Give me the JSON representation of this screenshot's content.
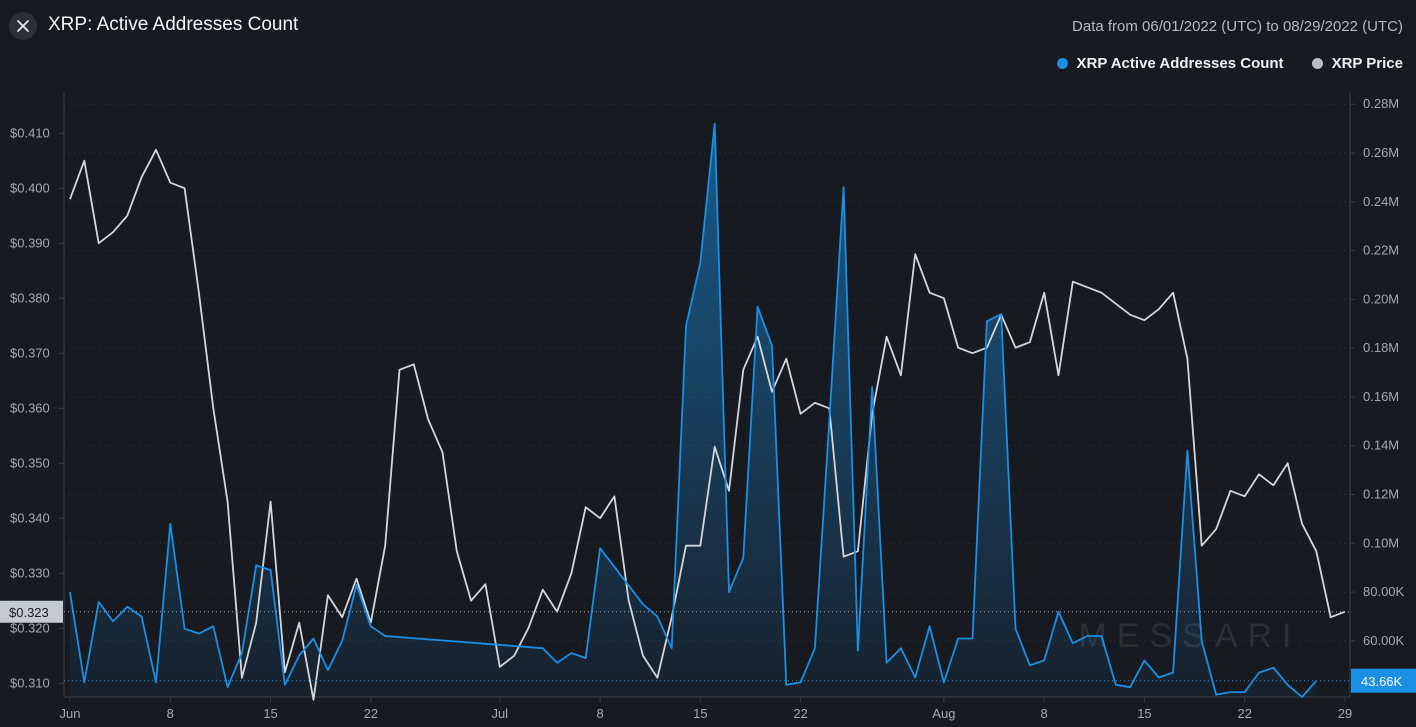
{
  "header": {
    "title": "XRP: Active Addresses Count",
    "date_range": "Data from 06/01/2022 (UTC) to 08/29/2022 (UTC)"
  },
  "legend": {
    "items": [
      {
        "label": "XRP Active Addresses Count",
        "color": "#1a8fe3"
      },
      {
        "label": "XRP Price",
        "color": "#b9bdc6"
      }
    ]
  },
  "watermark": "MESSARI",
  "colors": {
    "background": "#171a21",
    "active_addresses": "#1a8fe3",
    "price": "#d3d6dc",
    "grid": "#2a2e37"
  },
  "chart_data": {
    "type": "line",
    "x_start": "2022-06-01",
    "x_end": "2022-08-29",
    "x_tick_labels": [
      "Jun",
      "8",
      "15",
      "22",
      "Jul",
      "8",
      "15",
      "22",
      "Aug",
      "8",
      "15",
      "22",
      "29"
    ],
    "left_axis": {
      "ticks": [
        "$0.310",
        "$0.320",
        "$0.330",
        "$0.340",
        "$0.350",
        "$0.360",
        "$0.370",
        "$0.380",
        "$0.390",
        "$0.400",
        "$0.410"
      ],
      "range": [
        0.3075,
        0.4175
      ],
      "current_label": "$0.323",
      "current_value": 0.323
    },
    "right_axis": {
      "ticks": [
        "60.00K",
        "80.00K",
        "0.10M",
        "0.12M",
        "0.14M",
        "0.16M",
        "0.18M",
        "0.20M",
        "0.22M",
        "0.24M",
        "0.26M",
        "0.28M"
      ],
      "range": [
        37000,
        285000
      ],
      "current_label": "43.66K",
      "current_value": 43660
    },
    "series": [
      {
        "name": "XRP Active Addresses Count",
        "axis": "right",
        "style": "area",
        "color": "#1a8fe3",
        "points": [
          [
            "2022-06-01",
            80000
          ],
          [
            "2022-06-02",
            43000
          ],
          [
            "2022-06-03",
            76000
          ],
          [
            "2022-06-04",
            68000
          ],
          [
            "2022-06-05",
            74000
          ],
          [
            "2022-06-06",
            70000
          ],
          [
            "2022-06-07",
            43000
          ],
          [
            "2022-06-08",
            108000
          ],
          [
            "2022-06-09",
            65000
          ],
          [
            "2022-06-10",
            63000
          ],
          [
            "2022-06-11",
            66000
          ],
          [
            "2022-06-12",
            41000
          ],
          [
            "2022-06-13",
            55000
          ],
          [
            "2022-06-14",
            91000
          ],
          [
            "2022-06-15",
            89000
          ],
          [
            "2022-06-16",
            42000
          ],
          [
            "2022-06-17",
            54000
          ],
          [
            "2022-06-18",
            61000
          ],
          [
            "2022-06-19",
            48000
          ],
          [
            "2022-06-20",
            60000
          ],
          [
            "2022-06-21",
            83000
          ],
          [
            "2022-06-22",
            66000
          ],
          [
            "2022-06-23",
            62000
          ],
          [
            "2022-07-04",
            57000
          ],
          [
            "2022-07-05",
            51000
          ],
          [
            "2022-07-06",
            55000
          ],
          [
            "2022-07-07",
            53000
          ],
          [
            "2022-07-08",
            98000
          ],
          [
            "2022-07-11",
            75000
          ],
          [
            "2022-07-12",
            70000
          ],
          [
            "2022-07-13",
            57000
          ],
          [
            "2022-07-14",
            189000
          ],
          [
            "2022-07-15",
            215000
          ],
          [
            "2022-07-16",
            272000
          ],
          [
            "2022-07-17",
            80000
          ],
          [
            "2022-07-18",
            94000
          ],
          [
            "2022-07-19",
            197000
          ],
          [
            "2022-07-20",
            181000
          ],
          [
            "2022-07-21",
            42000
          ],
          [
            "2022-07-22",
            43000
          ],
          [
            "2022-07-23",
            57000
          ],
          [
            "2022-07-24",
            150000
          ],
          [
            "2022-07-25",
            246000
          ],
          [
            "2022-07-26",
            56000
          ],
          [
            "2022-07-27",
            164000
          ],
          [
            "2022-07-28",
            51000
          ],
          [
            "2022-07-29",
            57000
          ],
          [
            "2022-07-30",
            45000
          ],
          [
            "2022-07-31",
            66000
          ],
          [
            "2022-08-01",
            43000
          ],
          [
            "2022-08-02",
            61000
          ],
          [
            "2022-08-03",
            61000
          ],
          [
            "2022-08-04",
            191000
          ],
          [
            "2022-08-05",
            194000
          ],
          [
            "2022-08-06",
            65000
          ],
          [
            "2022-08-07",
            50000
          ],
          [
            "2022-08-08",
            52000
          ],
          [
            "2022-08-09",
            72000
          ],
          [
            "2022-08-10",
            59000
          ],
          [
            "2022-08-11",
            62000
          ],
          [
            "2022-08-12",
            62000
          ],
          [
            "2022-08-13",
            42000
          ],
          [
            "2022-08-14",
            41000
          ],
          [
            "2022-08-15",
            52000
          ],
          [
            "2022-08-16",
            45000
          ],
          [
            "2022-08-17",
            47000
          ],
          [
            "2022-08-18",
            138000
          ],
          [
            "2022-08-19",
            60000
          ],
          [
            "2022-08-20",
            38000
          ],
          [
            "2022-08-21",
            39000
          ],
          [
            "2022-08-22",
            39000
          ],
          [
            "2022-08-23",
            47000
          ],
          [
            "2022-08-24",
            49000
          ],
          [
            "2022-08-25",
            42000
          ],
          [
            "2022-08-26",
            37000
          ],
          [
            "2022-08-27",
            43660
          ]
        ]
      },
      {
        "name": "XRP Price",
        "axis": "left",
        "style": "line",
        "color": "#d3d6dc",
        "points": [
          [
            "2022-06-01",
            0.398
          ],
          [
            "2022-06-02",
            0.405
          ],
          [
            "2022-06-03",
            0.39
          ],
          [
            "2022-06-04",
            0.392
          ],
          [
            "2022-06-05",
            0.395
          ],
          [
            "2022-06-06",
            0.402
          ],
          [
            "2022-06-07",
            0.407
          ],
          [
            "2022-06-08",
            0.401
          ],
          [
            "2022-06-09",
            0.4
          ],
          [
            "2022-06-10",
            0.381
          ],
          [
            "2022-06-11",
            0.36
          ],
          [
            "2022-06-12",
            0.343
          ],
          [
            "2022-06-13",
            0.311
          ],
          [
            "2022-06-14",
            0.321
          ],
          [
            "2022-06-15",
            0.343
          ],
          [
            "2022-06-16",
            0.312
          ],
          [
            "2022-06-17",
            0.321
          ],
          [
            "2022-06-18",
            0.307
          ],
          [
            "2022-06-19",
            0.326
          ],
          [
            "2022-06-20",
            0.322
          ],
          [
            "2022-06-21",
            0.329
          ],
          [
            "2022-06-22",
            0.321
          ],
          [
            "2022-06-23",
            0.335
          ],
          [
            "2022-06-24",
            0.367
          ],
          [
            "2022-06-25",
            0.368
          ],
          [
            "2022-06-26",
            0.358
          ],
          [
            "2022-06-27",
            0.352
          ],
          [
            "2022-06-28",
            0.334
          ],
          [
            "2022-06-29",
            0.325
          ],
          [
            "2022-06-30",
            0.328
          ],
          [
            "2022-07-01",
            0.313
          ],
          [
            "2022-07-02",
            0.315
          ],
          [
            "2022-07-03",
            0.32
          ],
          [
            "2022-07-04",
            0.327
          ],
          [
            "2022-07-05",
            0.323
          ],
          [
            "2022-07-06",
            0.33
          ],
          [
            "2022-07-07",
            0.342
          ],
          [
            "2022-07-08",
            0.34
          ],
          [
            "2022-07-09",
            0.344
          ],
          [
            "2022-07-10",
            0.325
          ],
          [
            "2022-07-11",
            0.315
          ],
          [
            "2022-07-12",
            0.311
          ],
          [
            "2022-07-13",
            0.322
          ],
          [
            "2022-07-14",
            0.335
          ],
          [
            "2022-07-15",
            0.335
          ],
          [
            "2022-07-16",
            0.353
          ],
          [
            "2022-07-17",
            0.345
          ],
          [
            "2022-07-18",
            0.367
          ],
          [
            "2022-07-19",
            0.373
          ],
          [
            "2022-07-20",
            0.363
          ],
          [
            "2022-07-21",
            0.369
          ],
          [
            "2022-07-22",
            0.359
          ],
          [
            "2022-07-23",
            0.361
          ],
          [
            "2022-07-24",
            0.36
          ],
          [
            "2022-07-25",
            0.333
          ],
          [
            "2022-07-26",
            0.334
          ],
          [
            "2022-07-27",
            0.359
          ],
          [
            "2022-07-28",
            0.373
          ],
          [
            "2022-07-29",
            0.366
          ],
          [
            "2022-07-30",
            0.388
          ],
          [
            "2022-07-31",
            0.381
          ],
          [
            "2022-08-01",
            0.38
          ],
          [
            "2022-08-02",
            0.371
          ],
          [
            "2022-08-03",
            0.37
          ],
          [
            "2022-08-04",
            0.371
          ],
          [
            "2022-08-05",
            0.377
          ],
          [
            "2022-08-06",
            0.371
          ],
          [
            "2022-08-07",
            0.372
          ],
          [
            "2022-08-08",
            0.381
          ],
          [
            "2022-08-09",
            0.366
          ],
          [
            "2022-08-10",
            0.383
          ],
          [
            "2022-08-11",
            0.382
          ],
          [
            "2022-08-12",
            0.381
          ],
          [
            "2022-08-13",
            0.379
          ],
          [
            "2022-08-14",
            0.377
          ],
          [
            "2022-08-15",
            0.376
          ],
          [
            "2022-08-16",
            0.378
          ],
          [
            "2022-08-17",
            0.381
          ],
          [
            "2022-08-18",
            0.369
          ],
          [
            "2022-08-19",
            0.335
          ],
          [
            "2022-08-20",
            0.338
          ],
          [
            "2022-08-21",
            0.345
          ],
          [
            "2022-08-22",
            0.344
          ],
          [
            "2022-08-23",
            0.348
          ],
          [
            "2022-08-24",
            0.346
          ],
          [
            "2022-08-25",
            0.35
          ],
          [
            "2022-08-26",
            0.339
          ],
          [
            "2022-08-27",
            0.334
          ],
          [
            "2022-08-28",
            0.322
          ],
          [
            "2022-08-29",
            0.323
          ]
        ]
      }
    ]
  }
}
